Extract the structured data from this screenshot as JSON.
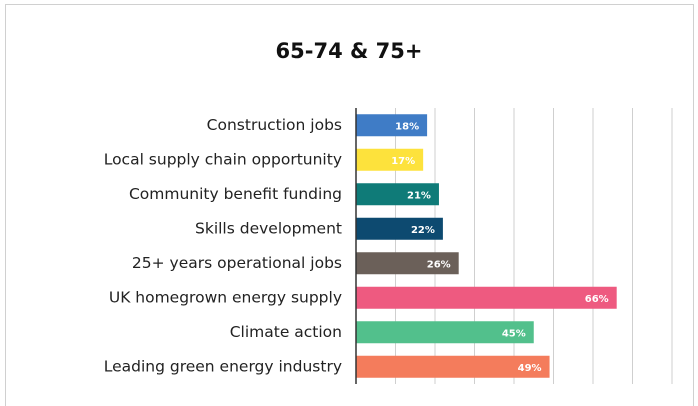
{
  "chart_data": {
    "type": "bar",
    "orientation": "horizontal",
    "title": "65-74 & 75+",
    "categories": [
      "Construction jobs",
      "Local supply chain opportunity",
      "Community benefit funding",
      "Skills development",
      "25+ years operational jobs",
      "UK homegrown energy supply",
      "Climate action",
      "Leading green energy industry"
    ],
    "values": [
      18,
      17,
      21,
      22,
      26,
      66,
      45,
      49
    ],
    "value_labels": [
      "18%",
      "17%",
      "21%",
      "22%",
      "26%",
      "66%",
      "45%",
      "49%"
    ],
    "colors": [
      "#3f7cc6",
      "#fde23c",
      "#0f7b78",
      "#0d4a70",
      "#6b6059",
      "#ee5a80",
      "#52c08c",
      "#f47c5c"
    ],
    "xlim": [
      0,
      80
    ],
    "xticks": [
      0,
      10,
      20,
      30,
      40,
      50,
      60,
      70,
      80
    ],
    "grid": true
  }
}
